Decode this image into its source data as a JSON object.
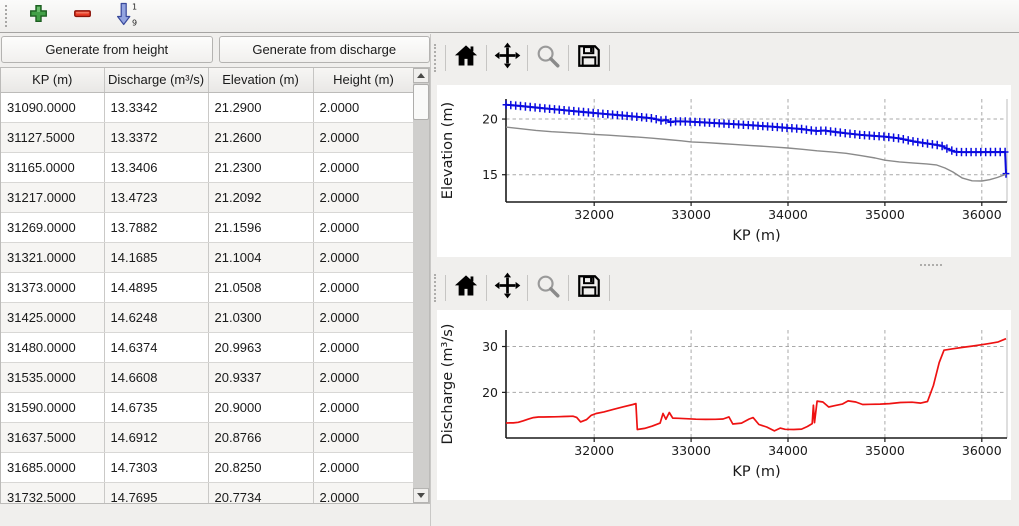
{
  "main_toolbar": {
    "icons": [
      "add-icon",
      "remove-icon",
      "sort-ascending-icon"
    ],
    "sort_top": "1",
    "sort_bottom": "9"
  },
  "buttons": {
    "generate_height": "Generate from height",
    "generate_discharge": "Generate from discharge"
  },
  "table": {
    "columns": [
      "KP (m)",
      "Discharge (m³/s)",
      "Elevation (m)",
      "Height (m)"
    ],
    "rows": [
      [
        "31090.0000",
        "13.3342",
        "21.2900",
        "2.0000"
      ],
      [
        "31127.5000",
        "13.3372",
        "21.2600",
        "2.0000"
      ],
      [
        "31165.0000",
        "13.3406",
        "21.2300",
        "2.0000"
      ],
      [
        "31217.0000",
        "13.4723",
        "21.2092",
        "2.0000"
      ],
      [
        "31269.0000",
        "13.7882",
        "21.1596",
        "2.0000"
      ],
      [
        "31321.0000",
        "14.1685",
        "21.1004",
        "2.0000"
      ],
      [
        "31373.0000",
        "14.4895",
        "21.0508",
        "2.0000"
      ],
      [
        "31425.0000",
        "14.6248",
        "21.0300",
        "2.0000"
      ],
      [
        "31480.0000",
        "14.6374",
        "20.9963",
        "2.0000"
      ],
      [
        "31535.0000",
        "14.6608",
        "20.9337",
        "2.0000"
      ],
      [
        "31590.0000",
        "14.6735",
        "20.9000",
        "2.0000"
      ],
      [
        "31637.5000",
        "14.6912",
        "20.8766",
        "2.0000"
      ],
      [
        "31685.0000",
        "14.7303",
        "20.8250",
        "2.0000"
      ],
      [
        "31732.5000",
        "14.7695",
        "20.7734",
        "2.0000"
      ]
    ]
  },
  "mpl_toolbar": {
    "icons": [
      "home",
      "pan",
      "zoom",
      "save"
    ]
  },
  "colors": {
    "elevation_line": "#0a0ae0",
    "bed_line": "#8a8a8a",
    "discharge_line": "#ee1212",
    "grid": "#9b9b9b"
  },
  "chart_data": [
    {
      "type": "line",
      "title": "",
      "xlabel": "KP (m)",
      "ylabel": "Elevation (m)",
      "xlim": [
        31090,
        36260
      ],
      "ylim": [
        12.55,
        21.8
      ],
      "xticks": [
        32000,
        33000,
        34000,
        35000,
        36000
      ],
      "yticks": [
        15,
        20
      ],
      "grid": true,
      "legend": false,
      "series": [
        {
          "name": "water-surface-elevation",
          "color": "#0a0ae0",
          "width": 2,
          "marker": "plus",
          "marker_interval": 50,
          "points": [
            [
              31090,
              21.29
            ],
            [
              31230,
              21.18
            ],
            [
              31370,
              21.06
            ],
            [
              31510,
              20.94
            ],
            [
              31650,
              20.83
            ],
            [
              31790,
              20.71
            ],
            [
              31930,
              20.6
            ],
            [
              32070,
              20.49
            ],
            [
              32210,
              20.38
            ],
            [
              32350,
              20.27
            ],
            [
              32490,
              20.17
            ],
            [
              32600,
              20.07
            ],
            [
              32660,
              19.95
            ],
            [
              32700,
              19.84
            ],
            [
              32745,
              19.92
            ],
            [
              32790,
              19.72
            ],
            [
              32840,
              19.8
            ],
            [
              32950,
              19.78
            ],
            [
              33100,
              19.72
            ],
            [
              33250,
              19.64
            ],
            [
              33400,
              19.56
            ],
            [
              33550,
              19.48
            ],
            [
              33700,
              19.39
            ],
            [
              33850,
              19.3
            ],
            [
              34000,
              19.2
            ],
            [
              34150,
              19.1
            ],
            [
              34230,
              18.99
            ],
            [
              34300,
              18.93
            ],
            [
              34380,
              18.97
            ],
            [
              34450,
              18.88
            ],
            [
              34600,
              18.72
            ],
            [
              34750,
              18.58
            ],
            [
              34900,
              18.48
            ],
            [
              35000,
              18.42
            ],
            [
              35150,
              18.26
            ],
            [
              35300,
              17.98
            ],
            [
              35420,
              17.82
            ],
            [
              35520,
              17.7
            ],
            [
              35590,
              17.58
            ],
            [
              35650,
              17.3
            ],
            [
              35720,
              17.06
            ],
            [
              35800,
              17.03
            ],
            [
              36240,
              17.04
            ],
            [
              36250,
              15.1
            ]
          ]
        },
        {
          "name": "bed-elevation",
          "color": "#8a8a8a",
          "width": 1.4,
          "points": [
            [
              31090,
              19.28
            ],
            [
              31250,
              19.12
            ],
            [
              31400,
              18.98
            ],
            [
              31560,
              18.86
            ],
            [
              31700,
              18.8
            ],
            [
              31850,
              18.72
            ],
            [
              32000,
              18.62
            ],
            [
              32150,
              18.55
            ],
            [
              32300,
              18.46
            ],
            [
              32450,
              18.38
            ],
            [
              32600,
              18.28
            ],
            [
              32750,
              18.16
            ],
            [
              32900,
              18.05
            ],
            [
              33000,
              17.95
            ],
            [
              33150,
              17.88
            ],
            [
              33300,
              17.8
            ],
            [
              33450,
              17.72
            ],
            [
              33600,
              17.63
            ],
            [
              33750,
              17.55
            ],
            [
              33900,
              17.46
            ],
            [
              34000,
              17.4
            ],
            [
              34150,
              17.28
            ],
            [
              34300,
              17.15
            ],
            [
              34450,
              17.05
            ],
            [
              34600,
              16.92
            ],
            [
              34750,
              16.72
            ],
            [
              34900,
              16.5
            ],
            [
              35000,
              16.3
            ],
            [
              35150,
              16.15
            ],
            [
              35300,
              16.04
            ],
            [
              35430,
              15.97
            ],
            [
              35530,
              15.88
            ],
            [
              35620,
              15.6
            ],
            [
              35700,
              15.25
            ],
            [
              35800,
              14.7
            ],
            [
              35900,
              14.45
            ],
            [
              36000,
              14.44
            ],
            [
              36080,
              14.55
            ],
            [
              36160,
              14.75
            ],
            [
              36250,
              15.05
            ]
          ]
        }
      ]
    },
    {
      "type": "line",
      "title": "",
      "xlabel": "KP (m)",
      "ylabel": "Discharge (m³/s)",
      "xlim": [
        31090,
        36260
      ],
      "ylim": [
        10.05,
        33.6
      ],
      "xticks": [
        32000,
        33000,
        34000,
        35000,
        36000
      ],
      "yticks": [
        20,
        30
      ],
      "grid": true,
      "legend": false,
      "series": [
        {
          "name": "discharge",
          "color": "#ee1212",
          "width": 1.7,
          "points": [
            [
              31090,
              13.33
            ],
            [
              31127,
              13.34
            ],
            [
              31165,
              13.34
            ],
            [
              31217,
              13.47
            ],
            [
              31269,
              13.79
            ],
            [
              31321,
              14.17
            ],
            [
              31373,
              14.49
            ],
            [
              31425,
              14.62
            ],
            [
              31480,
              14.64
            ],
            [
              31535,
              14.66
            ],
            [
              31590,
              14.67
            ],
            [
              31637,
              14.69
            ],
            [
              31685,
              14.73
            ],
            [
              31732,
              14.77
            ],
            [
              31780,
              14.8
            ],
            [
              31820,
              14.55
            ],
            [
              31860,
              13.55
            ],
            [
              31920,
              14.05
            ],
            [
              31970,
              15.0
            ],
            [
              32020,
              15.4
            ],
            [
              32100,
              15.75
            ],
            [
              32200,
              16.3
            ],
            [
              32300,
              16.85
            ],
            [
              32400,
              17.35
            ],
            [
              32430,
              17.55
            ],
            [
              32445,
              11.9
            ],
            [
              32520,
              12.15
            ],
            [
              32600,
              12.65
            ],
            [
              32680,
              13.3
            ],
            [
              32710,
              15.4
            ],
            [
              32740,
              14.15
            ],
            [
              32775,
              15.6
            ],
            [
              32810,
              14.4
            ],
            [
              32870,
              14.35
            ],
            [
              32950,
              14.25
            ],
            [
              33050,
              14.15
            ],
            [
              33150,
              14.1
            ],
            [
              33250,
              14.12
            ],
            [
              33330,
              14.2
            ],
            [
              33390,
              14.65
            ],
            [
              33430,
              13.1
            ],
            [
              33520,
              13.3
            ],
            [
              33600,
              14.2
            ],
            [
              33640,
              14.5
            ],
            [
              33700,
              13.0
            ],
            [
              33780,
              12.45
            ],
            [
              33860,
              11.6
            ],
            [
              33920,
              12.2
            ],
            [
              33970,
              11.95
            ],
            [
              34060,
              11.9
            ],
            [
              34140,
              12.0
            ],
            [
              34200,
              12.55
            ],
            [
              34250,
              13.2
            ],
            [
              34262,
              17.2
            ],
            [
              34274,
              13.4
            ],
            [
              34300,
              18.1
            ],
            [
              34360,
              17.9
            ],
            [
              34420,
              16.8
            ],
            [
              34480,
              17.1
            ],
            [
              34560,
              17.45
            ],
            [
              34620,
              18.15
            ],
            [
              34700,
              17.9
            ],
            [
              34770,
              17.35
            ],
            [
              34850,
              17.4
            ],
            [
              34950,
              17.45
            ],
            [
              35050,
              17.55
            ],
            [
              35160,
              17.8
            ],
            [
              35280,
              17.85
            ],
            [
              35370,
              17.65
            ],
            [
              35440,
              18.0
            ],
            [
              35500,
              21.5
            ],
            [
              35560,
              26.5
            ],
            [
              35610,
              29.2
            ],
            [
              35700,
              29.5
            ],
            [
              35800,
              29.8
            ],
            [
              35900,
              30.1
            ],
            [
              36000,
              30.4
            ],
            [
              36090,
              30.7
            ],
            [
              36170,
              31.0
            ],
            [
              36250,
              31.7
            ]
          ]
        }
      ]
    }
  ]
}
